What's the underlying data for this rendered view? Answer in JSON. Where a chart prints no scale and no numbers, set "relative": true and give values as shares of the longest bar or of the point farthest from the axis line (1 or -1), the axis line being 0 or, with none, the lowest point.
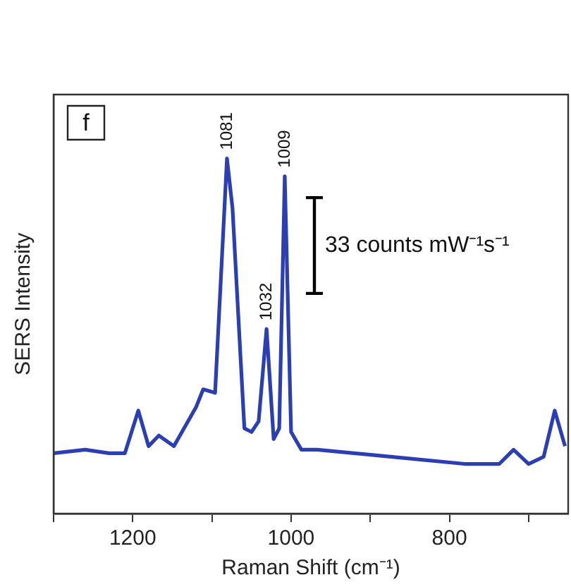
{
  "chart_data": {
    "type": "line",
    "xlabel": "Raman Shift (cm⁻¹)",
    "ylabel": "SERS Intensity",
    "relative": true,
    "xlim": [
      1300,
      650
    ],
    "xticks": [
      {
        "value": 1300,
        "label": null
      },
      1200,
      {
        "value": 1100,
        "label": null
      },
      1000,
      {
        "value": 900,
        "label": null
      },
      800,
      {
        "value": 700,
        "label": null
      }
    ],
    "x": [
      1300,
      1260,
      1230,
      1210,
      1193,
      1180,
      1167,
      1148,
      1120,
      1111,
      1096,
      1081,
      1074,
      1059,
      1050,
      1041,
      1031,
      1022,
      1015,
      1008,
      1000,
      987,
      967,
      874,
      781,
      737,
      719,
      700,
      681,
      667,
      654
    ],
    "series": [
      {
        "color": "#2b3fb3",
        "values": [
          0.17,
          0.18,
          0.17,
          0.17,
          0.29,
          0.19,
          0.22,
          0.19,
          0.3,
          0.35,
          0.34,
          1,
          0.86,
          0.24,
          0.23,
          0.26,
          0.52,
          0.21,
          0.24,
          0.95,
          0.23,
          0.18,
          0.18,
          0.16,
          0.14,
          0.14,
          0.18,
          0.14,
          0.16,
          0.29,
          0.19
        ]
      }
    ],
    "annotations": [
      "f",
      "33 counts mW⁻¹s⁻¹",
      {
        "text": "1081",
        "x": 1081,
        "y": 1
      },
      {
        "text": "1032",
        "x": 1031,
        "y": 0.52
      },
      {
        "text": "1009",
        "x": 1008,
        "y": 0.95
      }
    ],
    "grid": false,
    "legend": false,
    "marker": "none",
    "line_style": "solid"
  }
}
